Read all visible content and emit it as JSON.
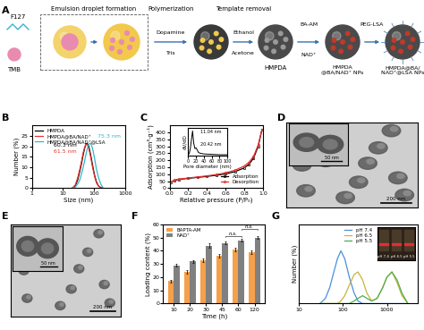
{
  "schematic": {
    "panel": "A",
    "texts": {
      "f127": "F127",
      "tmb": "TMB",
      "step1": "Emulsion droplet formation",
      "step2": "Polymerization",
      "reagent2a": "Dopamine",
      "reagent2b": "Tris",
      "step3": "Template removal",
      "reagent3a": "Ethanol",
      "reagent3b": "Acetone",
      "product1": "HMPDA",
      "reagent4a": "BA-AM",
      "reagent4b": "NAD⁺",
      "product2": "HMPDA\n@BA/NAD⁺ NPs",
      "reagent5": "PEG-LSA",
      "product3": "HMPDA@BA/\nNAD⁺@LSA NPs"
    }
  },
  "images": [
    {
      "panel": "D",
      "scale_bars": [
        "50 nm",
        "200 nm"
      ]
    },
    {
      "panel": "E",
      "scale_bars": [
        "50 nm",
        "200 nm"
      ]
    }
  ],
  "chart_data": [
    {
      "panel": "B",
      "type": "line",
      "log": "x",
      "xlabel": "Size (nm)",
      "ylabel": "Number (%)",
      "x": [
        20,
        25,
        30,
        35,
        40,
        45,
        50,
        55,
        60,
        68,
        78,
        90,
        105,
        120,
        140,
        165,
        190
      ],
      "series": [
        {
          "name": "HMPDA",
          "color": "#000000",
          "values": [
            0,
            1,
            4,
            8,
            12,
            16,
            19,
            21,
            21.5,
            20,
            16,
            11,
            6,
            3,
            1,
            0.3,
            0
          ]
        },
        {
          "name": "HMPDA@BA/NAD⁺",
          "color": "#e8322f",
          "values": [
            0,
            1.5,
            5,
            9,
            13,
            17,
            19.5,
            21,
            21,
            19,
            15,
            10,
            5.5,
            2.5,
            1,
            0.2,
            0
          ]
        },
        {
          "name": "HMPDA@BA/NAD⁺@LSA",
          "color": "#35b5c9",
          "values": [
            0,
            0.5,
            2,
            4,
            7,
            10,
            13,
            16,
            18.5,
            21,
            21.5,
            19,
            14,
            9,
            5,
            2,
            0.5
          ]
        }
      ],
      "xlim": [
        1,
        1000
      ],
      "xticks": [
        1,
        10,
        100,
        1000
      ],
      "ylim": [
        0,
        30
      ],
      "yticks": [
        0,
        5,
        10,
        15,
        20,
        25
      ],
      "legend": "upper left",
      "annotations": [
        "60.3 nm",
        "61.5 nm",
        "75.3 nm"
      ]
    },
    {
      "panel": "C",
      "type": "line",
      "xlabel": "Relative pressure (P/P₀)",
      "ylabel": "Adsorption (cm³·g⁻¹)",
      "x": [
        0.01,
        0.05,
        0.1,
        0.2,
        0.3,
        0.4,
        0.5,
        0.6,
        0.7,
        0.8,
        0.85,
        0.9,
        0.95,
        0.99
      ],
      "series": [
        {
          "name": "Adsorption",
          "color": "#000000",
          "marker": "square",
          "values": [
            40,
            55,
            62,
            70,
            77,
            84,
            92,
            102,
            118,
            145,
            170,
            215,
            300,
            420
          ]
        },
        {
          "name": "Desorption",
          "color": "#e8322f",
          "marker": "circle",
          "values": [
            42,
            57,
            64,
            73,
            80,
            88,
            97,
            110,
            128,
            158,
            185,
            228,
            310,
            420
          ]
        }
      ],
      "xlim": [
        0.0,
        1.0
      ],
      "xticks": [
        0.0,
        0.2,
        0.4,
        0.6,
        0.8,
        1.0
      ],
      "ylim": [
        0,
        450
      ],
      "yticks": [
        0,
        50,
        100,
        150,
        200,
        250,
        300,
        350,
        400
      ],
      "legend": "lower right",
      "inset": {
        "type": "line",
        "xlabel": "Pore diameter (nm)",
        "ylabel": "dV/dD",
        "x": [
          2,
          5,
          8,
          11,
          14,
          17,
          20,
          23,
          26,
          30,
          40,
          60,
          80,
          100
        ],
        "values": [
          0.2,
          0.8,
          2.0,
          3.2,
          1.6,
          0.9,
          1.0,
          0.7,
          0.4,
          0.3,
          0.2,
          0.15,
          0.1,
          0.1
        ],
        "color": "#000000",
        "xlim": [
          0,
          100
        ],
        "xticks": [
          0,
          20,
          40,
          60,
          80,
          100
        ],
        "ylim": [
          0,
          3.6
        ],
        "tick_labels": "x",
        "annotations": [
          "11.04 nm",
          "20.42 nm"
        ]
      }
    },
    {
      "panel": "F",
      "type": "bar",
      "xlabel": "Time (h)",
      "ylabel": "Loading content (%)",
      "categories": [
        "10",
        "20",
        "30",
        "45",
        "60",
        "120"
      ],
      "series": [
        {
          "name": "BAPTA-AM",
          "color": "#f5a04a",
          "values": [
            17,
            24,
            33,
            36,
            41,
            39
          ],
          "errors": [
            1.0,
            1.2,
            1.5,
            1.3,
            1.5,
            1.2
          ]
        },
        {
          "name": "NAD⁺",
          "color": "#808080",
          "values": [
            29,
            32,
            44,
            46,
            48,
            50
          ],
          "errors": [
            0.8,
            1.0,
            1.5,
            1.0,
            1.2,
            1.0
          ]
        }
      ],
      "ylim": [
        0,
        60
      ],
      "yticks": [
        0,
        10,
        20,
        30,
        40,
        50,
        60
      ],
      "legend": "upper left",
      "annotations": [
        {
          "text": "n.s.",
          "categories": [
            "45",
            "60"
          ]
        },
        {
          "text": "n.s.",
          "categories": [
            "60",
            "120"
          ]
        }
      ]
    },
    {
      "panel": "G",
      "type": "line",
      "log": "x",
      "ylabel": "Number (%)",
      "x": [
        30,
        40,
        50,
        60,
        75,
        90,
        110,
        140,
        180,
        220,
        280,
        350,
        450,
        600,
        800,
        1000,
        1300,
        1700,
        2200,
        3000
      ],
      "series": [
        {
          "name": "pH 7.4",
          "color": "#4a90d9",
          "values": [
            0,
            2,
            6,
            11,
            17,
            20,
            17,
            10,
            4,
            1,
            0,
            0,
            0,
            0,
            0,
            0,
            0,
            0,
            0,
            0
          ]
        },
        {
          "name": "pH 6.5",
          "color": "#c9b33a",
          "values": [
            0,
            0,
            0,
            0,
            0,
            1,
            3,
            7,
            11,
            12,
            9,
            4,
            1,
            2,
            6,
            10,
            12,
            8,
            3,
            0
          ]
        },
        {
          "name": "pH 5.5",
          "color": "#4caf50",
          "values": [
            0,
            0,
            0,
            0,
            0,
            0,
            0,
            0,
            1,
            2,
            3,
            2,
            1,
            2,
            6,
            10,
            12,
            9,
            4,
            0
          ]
        }
      ],
      "xlim": [
        10,
        5000
      ],
      "xticks": [
        10,
        100,
        1000
      ],
      "ylim": [
        0,
        30
      ],
      "tick_labels": "x",
      "legend": "upper center"
    }
  ]
}
